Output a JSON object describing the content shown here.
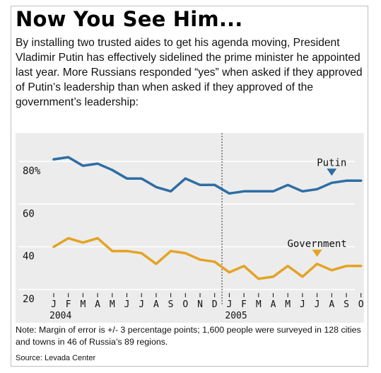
{
  "headline": "Now You See Him...",
  "intro": "By installing two trusted aides to get his agenda moving, President Vladimir Putin has effectively sidelined the prime minister he appointed last year. More Russians responded “yes” when asked if they approved of Putin’s leadership than when asked if they approved of the government’s leadership:",
  "note": "Note: Margin of error is +/- 3 percentage points; 1,600 people were surveyed in 128 cities and towns in 46 of Russia’s 89 regions.",
  "source": "Source: Levada Center",
  "colors": {
    "putin": "#2e6da4",
    "government": "#e3a324",
    "background": "#ececec",
    "grid": "#ffffff"
  },
  "chart_data": {
    "type": "line",
    "title": "",
    "xlabel": "",
    "ylabel": "",
    "ylim": [
      17,
      90
    ],
    "grid": true,
    "y_tick_labels": [
      "80%",
      "60",
      "40",
      "20"
    ],
    "y_tick_values": [
      80,
      60,
      40,
      20
    ],
    "categories": [
      "J",
      "F",
      "M",
      "A",
      "M",
      "J",
      "J",
      "A",
      "S",
      "O",
      "N",
      "D",
      "J",
      "F",
      "M",
      "A",
      "M",
      "J",
      "J",
      "A",
      "S",
      "O"
    ],
    "year_labels": [
      {
        "label": "2004",
        "index": 0
      },
      {
        "label": "2005",
        "index": 12
      }
    ],
    "divider_index": 11.5,
    "series": [
      {
        "name": "Putin",
        "color": "#2e6da4",
        "values": [
          81,
          82,
          78,
          79,
          76,
          72,
          72,
          68,
          66,
          72,
          69,
          69,
          65,
          66,
          66,
          66,
          69,
          66,
          67,
          70,
          71,
          71
        ]
      },
      {
        "name": "Government",
        "color": "#e3a324",
        "values": [
          40,
          44,
          42,
          44,
          38,
          38,
          37,
          32,
          38,
          37,
          34,
          33,
          28,
          31,
          25,
          26,
          31,
          26,
          32,
          29,
          31,
          31
        ]
      }
    ]
  }
}
